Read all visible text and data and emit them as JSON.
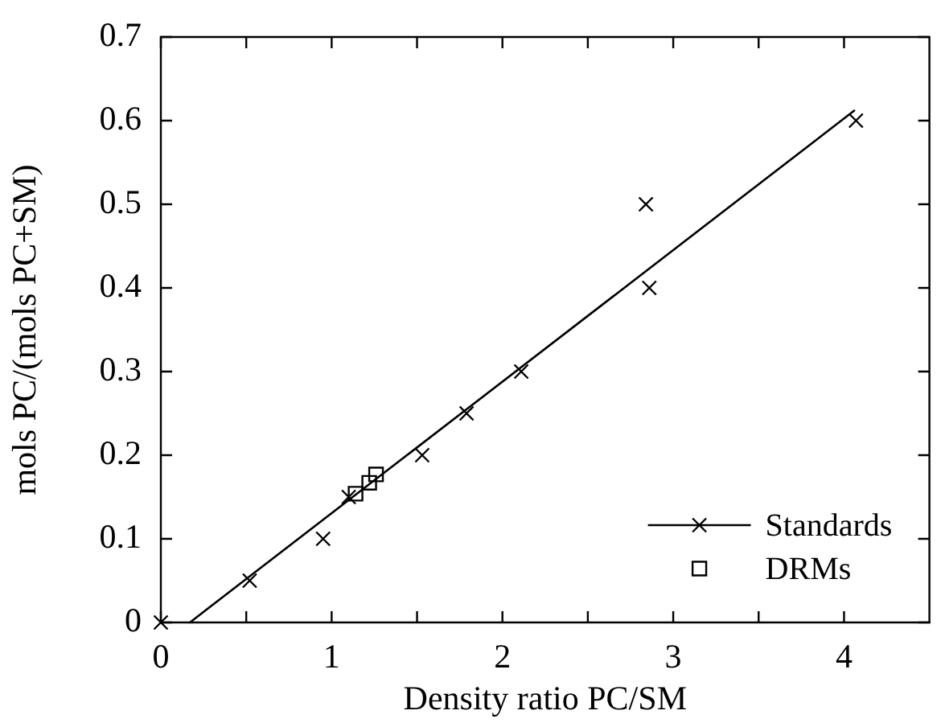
{
  "chart_data": {
    "type": "scatter",
    "xlabel": "Density ratio PC/SM",
    "ylabel": "mols PC/(mols PC+SM)",
    "xlim": [
      0,
      4.5
    ],
    "xticks": [
      0,
      {
        "value": 0.5,
        "label": null
      },
      1,
      {
        "value": 1.5,
        "label": null
      },
      2,
      {
        "value": 2.5,
        "label": null
      },
      3,
      {
        "value": 3.5,
        "label": null
      },
      4
    ],
    "ylim": [
      0,
      0.7
    ],
    "yticks": [
      0,
      0.1,
      0.2,
      0.3,
      0.4,
      0.5,
      0.6,
      0.7
    ],
    "grid": false,
    "legend": "bottom right",
    "series": [
      {
        "name": "Standards",
        "type": "scatter",
        "marker": "cross",
        "color": "#000000",
        "x": [
          0,
          0.52,
          0.95,
          1.1,
          1.53,
          1.79,
          2.11,
          2.84,
          2.86,
          4.07
        ],
        "values": [
          0,
          0.05,
          0.1,
          0.15,
          0.2,
          0.25,
          0.3,
          0.5,
          0.4,
          0.6
        ]
      },
      {
        "name": "DRMs",
        "type": "scatter",
        "marker": "square",
        "color": "#000000",
        "x": [
          1.14,
          1.22,
          1.26
        ],
        "values": [
          0.154,
          0.167,
          0.177
        ]
      },
      {
        "type": "line",
        "marker": "none",
        "line_style": "solid",
        "color": "#000000",
        "x": [
          0.17,
          4.06
        ],
        "values": [
          0,
          0.612
        ]
      }
    ]
  }
}
